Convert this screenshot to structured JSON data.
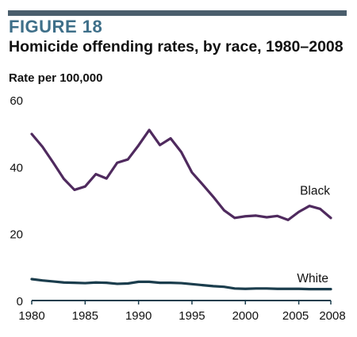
{
  "header": {
    "figure_label": "FIGURE 18",
    "title": "Homicide offending rates, by race, 1980–2008",
    "rule_color": "#4a5e6c",
    "label_color": "#3e6f89"
  },
  "chart_data": {
    "type": "line",
    "title": "Homicide offending rates, by race, 1980–2008",
    "xlabel": "",
    "ylabel": "Rate per 100,000",
    "xlim": [
      1980,
      2008
    ],
    "ylim": [
      0,
      60
    ],
    "x_ticks": [
      1980,
      1985,
      1990,
      1995,
      2000,
      2005,
      2008
    ],
    "y_ticks": [
      0,
      20,
      40,
      60
    ],
    "grid": false,
    "legend": "direct labels at line ends",
    "x": [
      1980,
      1981,
      1982,
      1983,
      1984,
      1985,
      1986,
      1987,
      1988,
      1989,
      1990,
      1991,
      1992,
      1993,
      1994,
      1995,
      1996,
      1997,
      1998,
      1999,
      2000,
      2001,
      2002,
      2003,
      2004,
      2005,
      2006,
      2007,
      2008
    ],
    "series": [
      {
        "name": "Black",
        "color": "#4f2a5e",
        "values": [
          49.8,
          46.0,
          41.3,
          36.4,
          33.1,
          34.1,
          37.8,
          36.5,
          41.2,
          42.2,
          46.4,
          51.0,
          46.5,
          48.5,
          44.4,
          38.3,
          34.7,
          31.0,
          27.0,
          24.7,
          25.2,
          25.4,
          24.9,
          25.3,
          24.1,
          26.5,
          28.3,
          27.4,
          24.7
        ]
      },
      {
        "name": "White",
        "color": "#1b3d4d",
        "values": [
          6.4,
          6.0,
          5.7,
          5.4,
          5.3,
          5.2,
          5.4,
          5.3,
          5.0,
          5.1,
          5.6,
          5.6,
          5.3,
          5.3,
          5.2,
          4.9,
          4.6,
          4.3,
          4.1,
          3.6,
          3.5,
          3.6,
          3.6,
          3.5,
          3.5,
          3.5,
          3.4,
          3.4,
          3.4
        ]
      }
    ],
    "axis_color": "#1b3d4d"
  }
}
